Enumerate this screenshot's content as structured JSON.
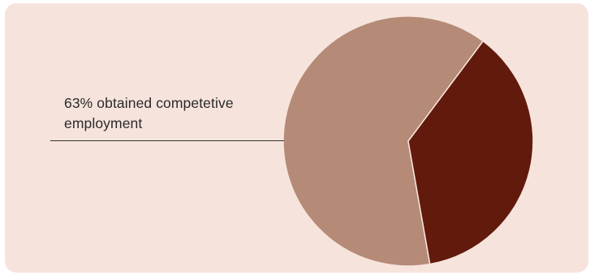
{
  "annotation": "63% obtained competetive employment",
  "colors": {
    "background_panel": "#f6e4dc",
    "slice_obtained": "#b58a77",
    "slice_other": "#621a0c",
    "leader_line": "#333333"
  },
  "chart_data": {
    "type": "pie",
    "slices": [
      {
        "value": 63,
        "color": "#b58a77"
      },
      {
        "value": 37,
        "color": "#621a0c"
      }
    ],
    "annotations": [
      "63% obtained competetive employment"
    ]
  }
}
